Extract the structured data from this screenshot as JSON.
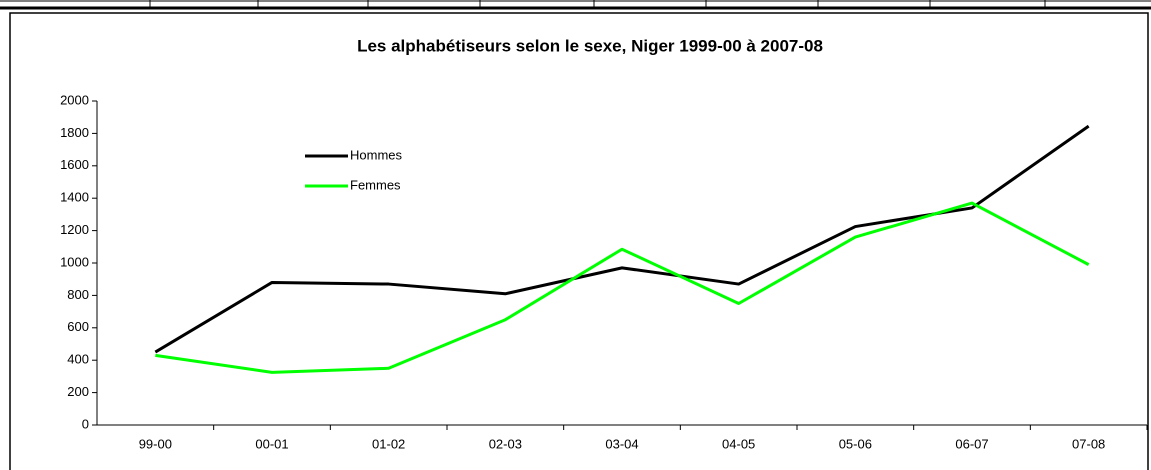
{
  "chart_data": {
    "type": "line",
    "title": "Les alphabétiseurs selon le sexe, Niger 1999-00 à 2007-08",
    "categories": [
      "99-00",
      "00-01",
      "01-02",
      "02-03",
      "03-04",
      "04-05",
      "05-06",
      "06-07",
      "07-08"
    ],
    "series": [
      {
        "name": "Hommes",
        "color": "#000000",
        "values": [
          450,
          880,
          870,
          810,
          970,
          870,
          1225,
          1340,
          1845
        ]
      },
      {
        "name": "Femmes",
        "color": "#00ff00",
        "values": [
          430,
          325,
          350,
          650,
          1085,
          750,
          1160,
          1370,
          990
        ]
      }
    ],
    "ylim": [
      0,
      2000
    ],
    "yticks": [
      0,
      200,
      400,
      600,
      800,
      1000,
      1200,
      1400,
      1600,
      1800,
      2000
    ],
    "grid": false,
    "legend": "upper left"
  }
}
